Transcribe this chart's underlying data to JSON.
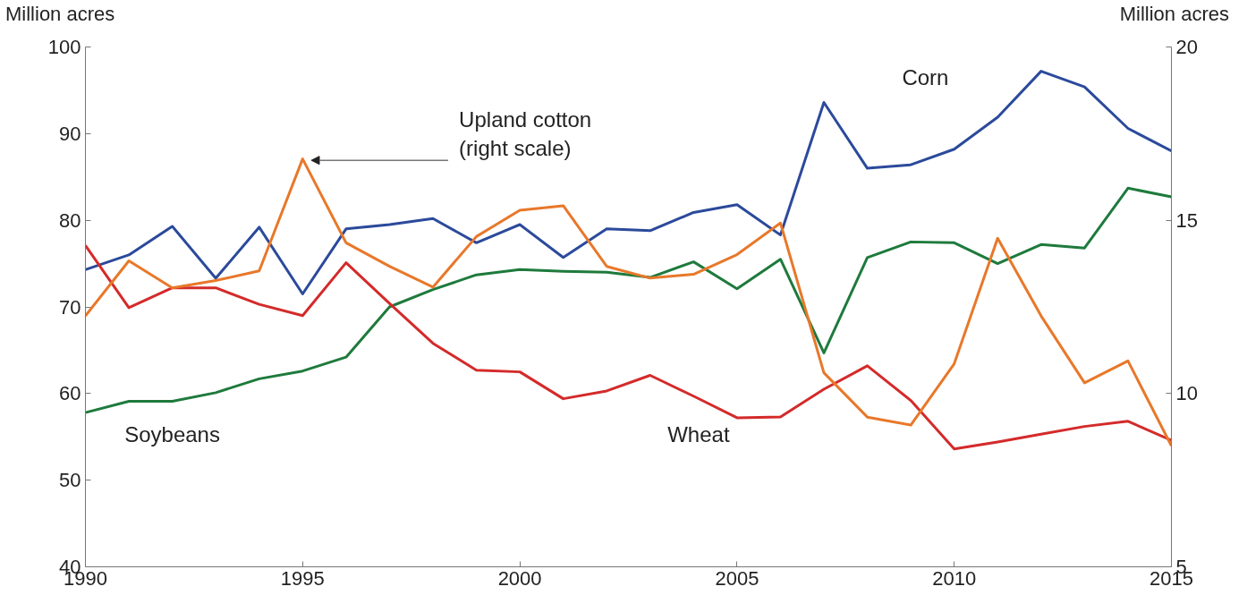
{
  "chart_data": {
    "type": "line",
    "ylabel": "Million acres",
    "y2label": "Million acres",
    "x": [
      1990,
      1991,
      1992,
      1993,
      1994,
      1995,
      1996,
      1997,
      1998,
      1999,
      2000,
      2001,
      2002,
      2003,
      2004,
      2005,
      2006,
      2007,
      2008,
      2009,
      2010,
      2011,
      2012,
      2013,
      2014,
      2015
    ],
    "series": [
      {
        "name": "Corn",
        "color": "#2b4a9b",
        "values": [
          74.3,
          76,
          79.3,
          73.3,
          79.2,
          71.5,
          79,
          79.5,
          80.2,
          77.4,
          79.5,
          75.7,
          79,
          78.8,
          80.9,
          81.8,
          78.3,
          93.6,
          86,
          86.4,
          88.2,
          91.9,
          97.2,
          95.4,
          90.6,
          88.0
        ]
      },
      {
        "name": "Soybeans",
        "color": "#1e7a3c",
        "values": [
          57.8,
          59.1,
          59.1,
          60.1,
          61.7,
          62.6,
          64.2,
          70.0,
          72.0,
          73.7,
          74.3,
          74.1,
          74.0,
          73.4,
          75.2,
          72.1,
          75.5,
          64.7,
          75.7,
          77.5,
          77.4,
          75.0,
          77.2,
          76.8,
          83.7,
          82.7
        ]
      },
      {
        "name": "Wheat",
        "color": "#d42a2a",
        "values": [
          77.1,
          69.9,
          72.2,
          72.2,
          70.3,
          69.0,
          75.1,
          70.4,
          65.8,
          62.7,
          62.5,
          59.4,
          60.3,
          62.1,
          59.7,
          57.2,
          57.3,
          60.5,
          63.2,
          59.2,
          53.6,
          54.4,
          55.3,
          56.2,
          56.8,
          54.6
        ]
      },
      {
        "name": "Upland cotton\n(right scale)",
        "color": "#e8782a",
        "axis": "y2",
        "values": [
          12.24,
          13.83,
          13.05,
          13.26,
          13.54,
          16.77,
          14.35,
          13.67,
          13.07,
          14.53,
          15.29,
          15.42,
          13.67,
          13.33,
          13.44,
          14.01,
          14.92,
          10.6,
          9.32,
          9.09,
          10.86,
          14.48,
          12.24,
          10.31,
          10.94,
          8.49
        ]
      }
    ],
    "xlim": [
      1990,
      2015
    ],
    "xticks": [
      1990,
      1995,
      2000,
      2005,
      2010,
      2015
    ],
    "ylim": [
      40,
      100
    ],
    "yticks": [
      40,
      50,
      60,
      70,
      80,
      90,
      100
    ],
    "y2lim": [
      5,
      20
    ],
    "y2ticks": [
      5,
      10,
      15,
      20
    ],
    "grid": false,
    "legend": false,
    "marker": "none",
    "line_style": "solid"
  }
}
